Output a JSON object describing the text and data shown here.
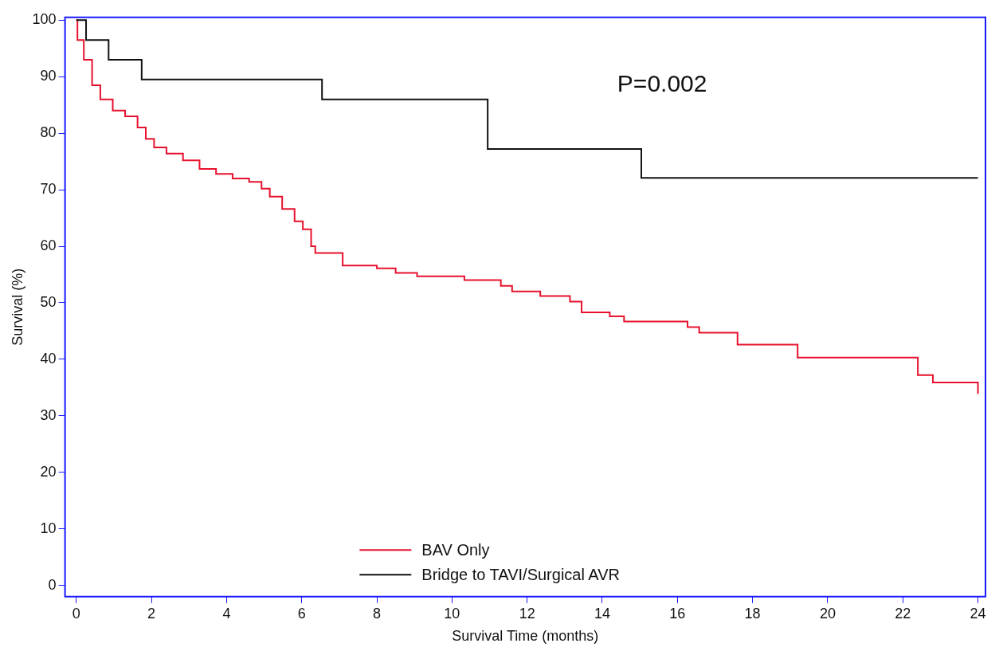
{
  "chart_data": {
    "type": "step",
    "xlabel": "Survival Time (months)",
    "ylabel": "Survival (%)",
    "xlim": [
      -0.3,
      24.2
    ],
    "ylim": [
      -2,
      100.5
    ],
    "xticks": [
      0,
      2,
      4,
      6,
      8,
      10,
      12,
      14,
      16,
      18,
      20,
      22,
      24
    ],
    "yticks": [
      0,
      10,
      20,
      30,
      40,
      50,
      60,
      70,
      80,
      90,
      100
    ],
    "grid": false,
    "legend": "bottom",
    "marker": "none",
    "line_style": "solid",
    "annotations": [
      "P=0.002"
    ],
    "series": [
      {
        "name": "BAV Only",
        "color": "#e8112d",
        "x": [
          0,
          0.03,
          0.2,
          0.42,
          0.64,
          0.97,
          1.3,
          1.63,
          1.85,
          2.07,
          2.4,
          2.84,
          3.28,
          3.72,
          4.16,
          4.6,
          4.93,
          5.15,
          5.48,
          5.81,
          6.03,
          6.25,
          6.36,
          7.09,
          8.0,
          8.5,
          9.07,
          10.33,
          11.3,
          11.6,
          12.35,
          13.14,
          13.45,
          14.2,
          14.58,
          16.27,
          16.58,
          17.6,
          19.2,
          22.4,
          22.8,
          24,
          24
        ],
        "values": [
          100,
          96.5,
          93,
          88.5,
          86,
          84,
          83,
          81,
          79,
          77.5,
          76.4,
          75.2,
          73.7,
          72.8,
          72,
          71.4,
          70.2,
          68.8,
          66.6,
          64.4,
          63,
          60,
          58.8,
          56.6,
          56.1,
          55.3,
          54.7,
          54,
          53,
          52,
          51.2,
          50.2,
          48.3,
          47.6,
          46.7,
          45.7,
          44.7,
          42.6,
          40.3,
          37.2,
          35.9,
          35.6,
          33.9
        ]
      },
      {
        "name": "Bridge to TAVI/Surgical AVR",
        "color": "#111111",
        "x": [
          0,
          0.26,
          0.86,
          1.74,
          6.54,
          10.95,
          15.04,
          24
        ],
        "values": [
          100,
          96.5,
          93,
          89.5,
          86,
          77.2,
          72.1,
          72.1
        ]
      }
    ]
  }
}
